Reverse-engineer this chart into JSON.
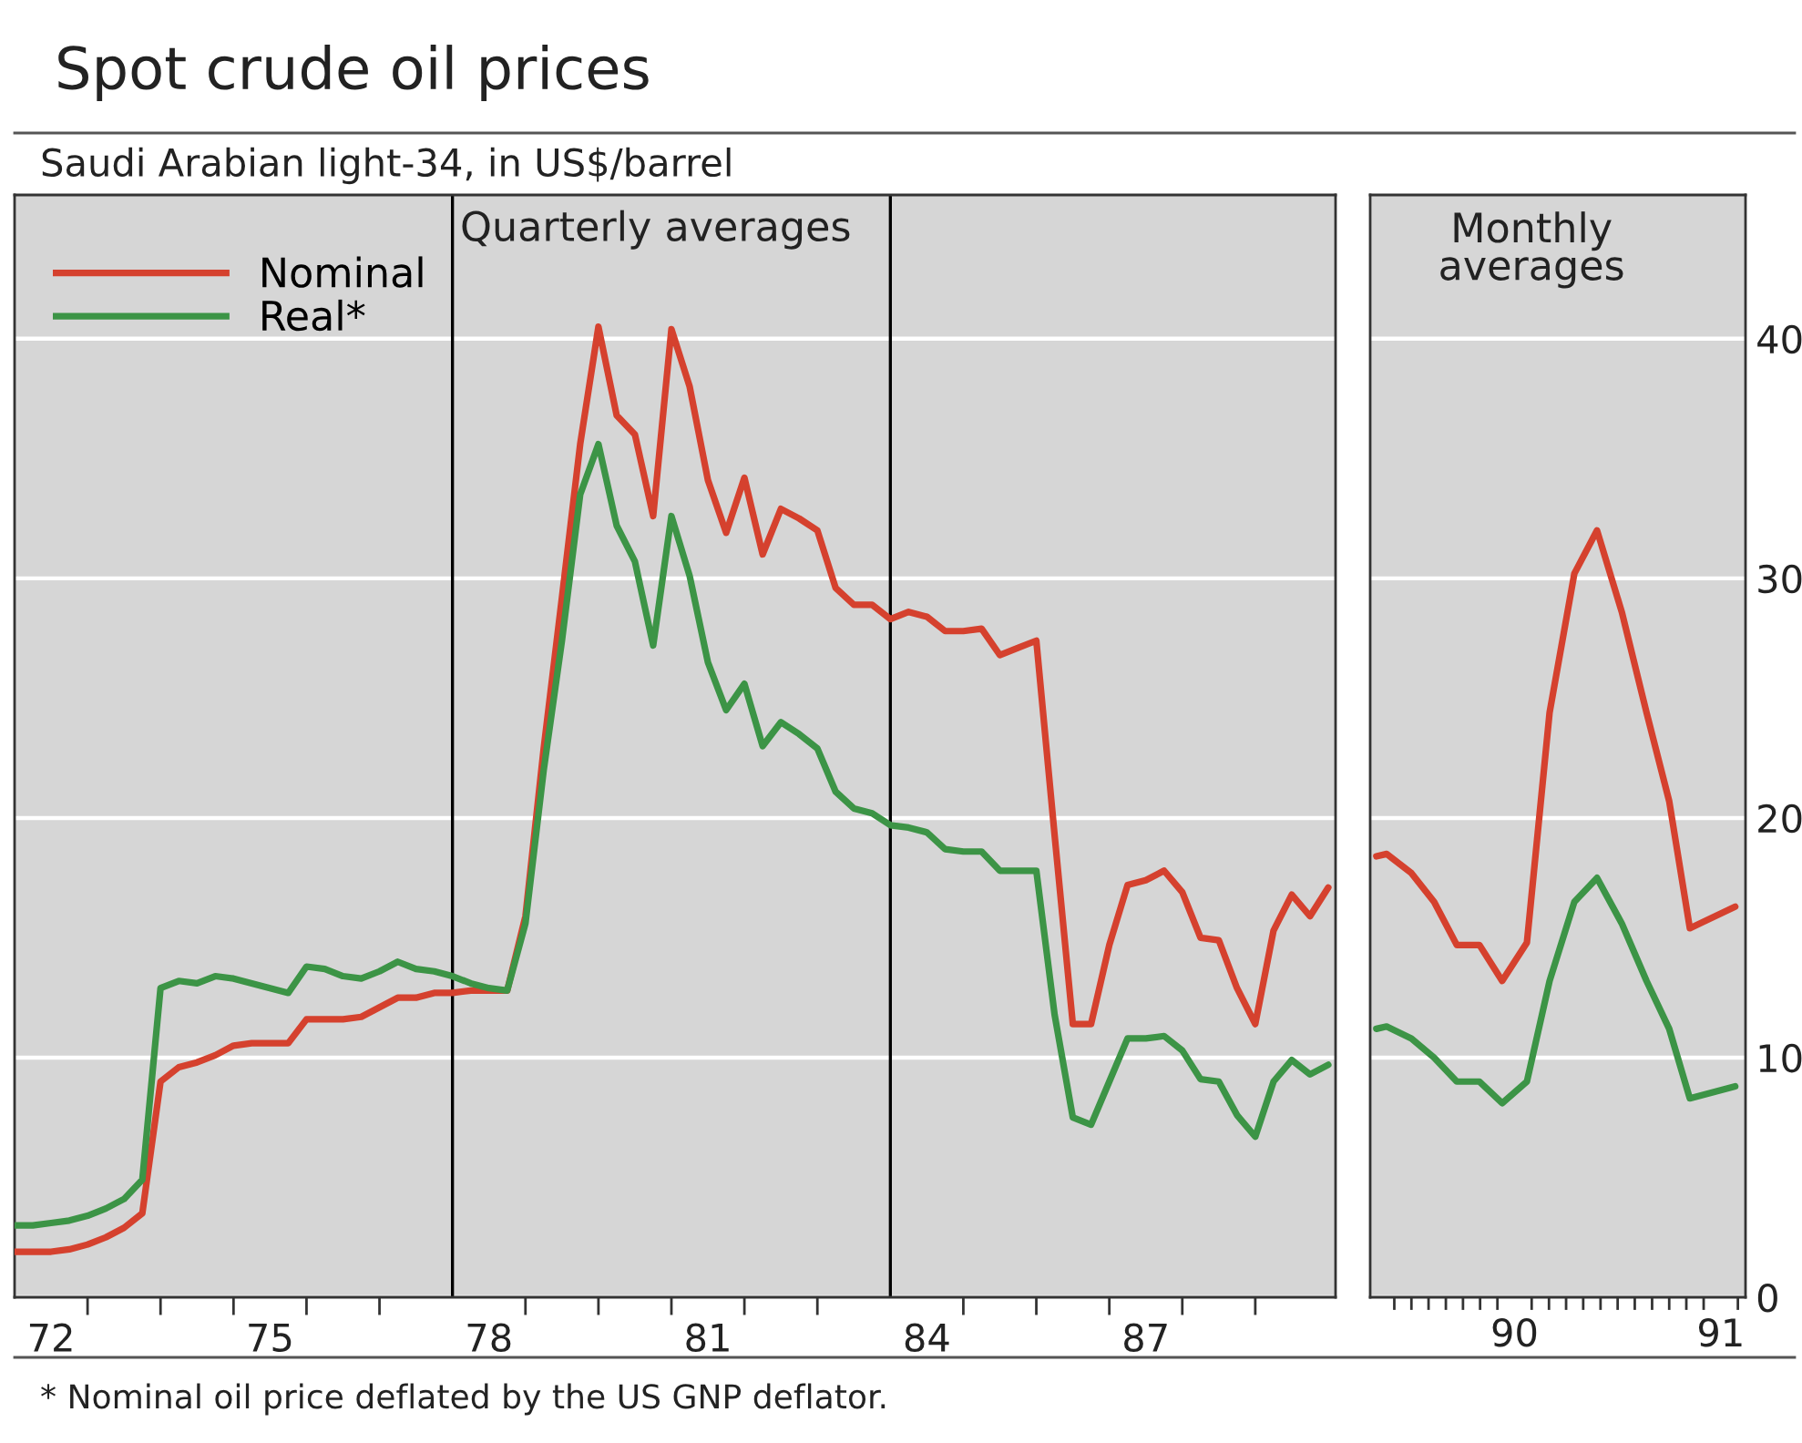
{
  "chart_data": [
    {
      "type": "line",
      "title": "Spot crude oil prices",
      "subtitle": "Saudi Arabian light-34, in US$/barrel",
      "annotations": [
        "Quarterly averages",
        "* Nominal oil price deflated by the US GNP deflator."
      ],
      "x": [
        71.5,
        71.75,
        72,
        72.25,
        72.5,
        72.75,
        73,
        73.25,
        73.5,
        73.75,
        74,
        74.25,
        74.5,
        74.75,
        75,
        75.25,
        75.5,
        75.75,
        76,
        76.25,
        76.5,
        76.75,
        77,
        77.25,
        77.5,
        77.75,
        78,
        78.25,
        78.5,
        78.75,
        79,
        79.25,
        79.5,
        79.75,
        80,
        80.25,
        80.5,
        80.75,
        81,
        81.25,
        81.5,
        81.75,
        82,
        82.25,
        82.5,
        82.75,
        83,
        83.25,
        83.5,
        83.75,
        84,
        84.25,
        84.5,
        84.75,
        85,
        85.25,
        85.5,
        85.75,
        86,
        86.25,
        86.5,
        86.75,
        87,
        87.25,
        87.5,
        87.75,
        88,
        88.25,
        88.5,
        88.75,
        89,
        89.25,
        89.5
      ],
      "series": [
        {
          "name": "Nominal",
          "color": "#d5412e",
          "values": [
            1.9,
            1.9,
            1.9,
            2.0,
            2.2,
            2.5,
            2.9,
            3.5,
            9.0,
            9.6,
            9.8,
            10.1,
            10.5,
            10.6,
            10.6,
            10.6,
            11.6,
            11.6,
            11.6,
            11.7,
            12.1,
            12.5,
            12.5,
            12.7,
            12.7,
            12.8,
            12.8,
            12.8,
            15.9,
            22.9,
            29.2,
            35.6,
            40.5,
            36.8,
            36.0,
            32.6,
            40.4,
            38.0,
            34.1,
            31.9,
            34.2,
            31.0,
            32.9,
            32.5,
            32.0,
            29.6,
            28.9,
            28.9,
            28.3,
            28.6,
            28.4,
            27.8,
            27.8,
            27.9,
            26.8,
            27.1,
            27.4,
            19.3,
            11.4,
            11.4,
            14.7,
            17.2,
            17.4,
            17.8,
            16.9,
            15.0,
            14.9,
            12.9,
            11.4,
            15.3,
            16.8,
            15.9,
            17.1
          ]
        },
        {
          "name": "Real*",
          "color": "#3c9446",
          "values": [
            3.0,
            3.0,
            3.1,
            3.2,
            3.4,
            3.7,
            4.1,
            4.9,
            12.9,
            13.2,
            13.1,
            13.4,
            13.3,
            13.1,
            12.9,
            12.7,
            13.8,
            13.7,
            13.4,
            13.3,
            13.6,
            14.0,
            13.7,
            13.6,
            13.4,
            13.1,
            12.9,
            12.8,
            15.6,
            22.0,
            27.4,
            33.5,
            35.6,
            32.2,
            30.7,
            27.2,
            32.6,
            30.1,
            26.5,
            24.5,
            25.6,
            23.0,
            24.0,
            23.5,
            22.9,
            21.1,
            20.4,
            20.2,
            19.7,
            19.6,
            19.4,
            18.7,
            18.6,
            18.6,
            17.8,
            17.8,
            17.8,
            11.8,
            7.5,
            7.2,
            9.0,
            10.8,
            10.8,
            10.9,
            10.3,
            9.1,
            9.0,
            7.6,
            6.7,
            9.0,
            9.9,
            9.3,
            9.7
          ]
        }
      ],
      "xlim": [
        71.5,
        89.6
      ],
      "ylim": [
        0,
        46
      ],
      "xticks": [
        72,
        75,
        78,
        81,
        84,
        87,
        {
          "value": 72.5,
          "label": null
        },
        {
          "value": 73.5,
          "label": null
        },
        {
          "value": 74.5,
          "label": null
        },
        {
          "value": 75.5,
          "label": null
        },
        {
          "value": 76.5,
          "label": null
        },
        {
          "value": 78.5,
          "label": null
        },
        {
          "value": 79.5,
          "label": null
        },
        {
          "value": 80.5,
          "label": null
        },
        {
          "value": 81.5,
          "label": null
        },
        {
          "value": 82.5,
          "label": null
        },
        {
          "value": 84.5,
          "label": null
        },
        {
          "value": 85.5,
          "label": null
        },
        {
          "value": 86.5,
          "label": null
        },
        {
          "value": 87.5,
          "label": null
        },
        {
          "value": 88.5,
          "label": null
        }
      ],
      "yticks": [
        0,
        10,
        20,
        30,
        40
      ],
      "tick_labels": "x",
      "ref_lines": [
        {
          "axis": "x",
          "value": 77.5,
          "color": "#000000"
        },
        {
          "axis": "x",
          "value": 83.5,
          "color": "#000000"
        }
      ],
      "grid": "y",
      "legend": "top left"
    },
    {
      "type": "line",
      "annotations": [
        "Monthly\naverages"
      ],
      "x": [
        89.33,
        89.38,
        89.5,
        89.61,
        89.72,
        89.83,
        89.94,
        90.06,
        90.17,
        90.29,
        90.4,
        90.52,
        90.64,
        90.75,
        90.85,
        91.07
      ],
      "series": [
        {
          "color": "#d5412e",
          "values": [
            18.4,
            18.5,
            17.7,
            16.5,
            14.7,
            14.7,
            13.2,
            14.8,
            24.4,
            30.2,
            32.0,
            28.6,
            24.4,
            20.7,
            15.4,
            16.3
          ]
        },
        {
          "color": "#3c9446",
          "values": [
            11.2,
            11.3,
            10.8,
            10.0,
            9.0,
            9.0,
            8.1,
            9.0,
            13.2,
            16.5,
            17.5,
            15.6,
            13.2,
            11.2,
            8.3,
            8.8
          ]
        }
      ],
      "xlim": [
        89.3,
        91.12
      ],
      "ylim": [
        0,
        46
      ],
      "xticks": [
        90,
        91,
        {
          "value": 89.417,
          "label": null
        },
        {
          "value": 89.5,
          "label": null
        },
        {
          "value": 89.583,
          "label": null
        },
        {
          "value": 89.667,
          "label": null
        },
        {
          "value": 89.75,
          "label": null
        },
        {
          "value": 89.833,
          "label": null
        },
        {
          "value": 89.917,
          "label": null
        },
        {
          "value": 90.083,
          "label": null
        },
        {
          "value": 90.167,
          "label": null
        },
        {
          "value": 90.25,
          "label": null
        },
        {
          "value": 90.333,
          "label": null
        },
        {
          "value": 90.417,
          "label": null
        },
        {
          "value": 90.5,
          "label": null
        },
        {
          "value": 90.583,
          "label": null
        },
        {
          "value": 90.667,
          "label": null
        },
        {
          "value": 90.75,
          "label": null
        },
        {
          "value": 90.833,
          "label": null
        },
        {
          "value": 90.917,
          "label": null
        },
        {
          "value": 91.083,
          "label": null
        }
      ],
      "yticks": [
        0,
        10,
        20,
        30,
        40
      ],
      "grid": "y"
    }
  ]
}
